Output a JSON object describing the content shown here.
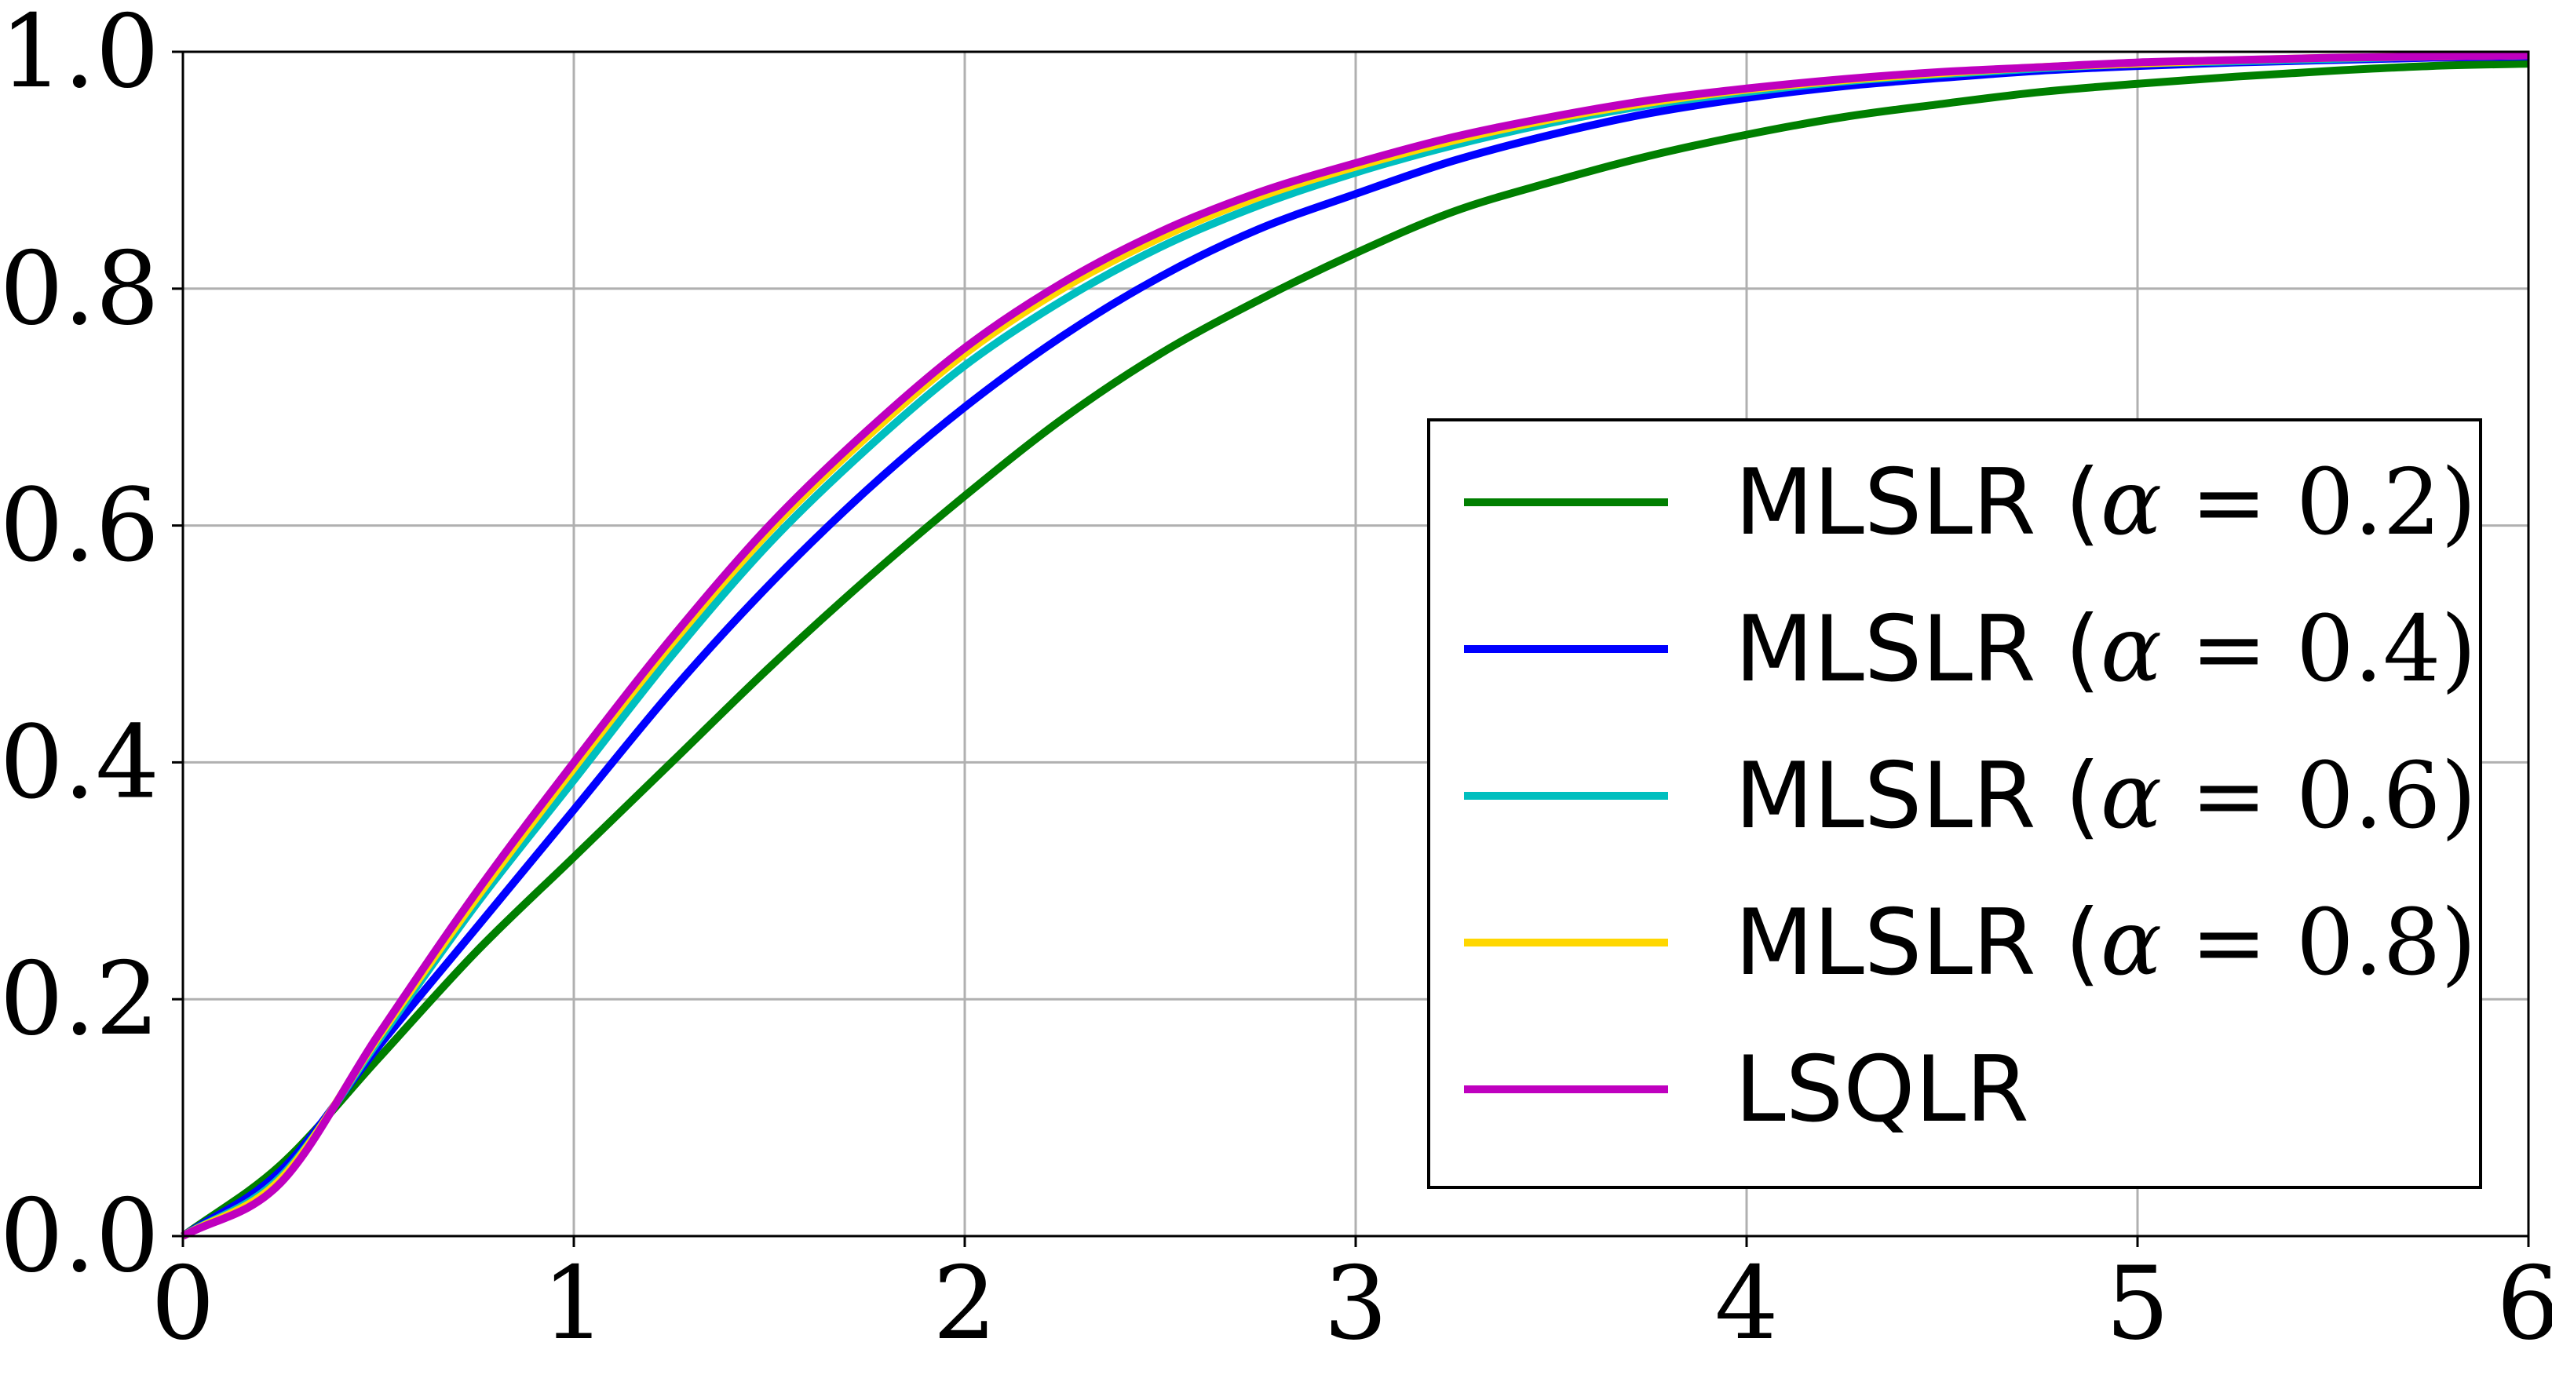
{
  "chart_data": {
    "type": "line",
    "title": "",
    "xlabel": "",
    "ylabel": "",
    "xlim": [
      0,
      6
    ],
    "ylim": [
      0,
      1.0
    ],
    "x_ticks": [
      "0",
      "1",
      "2",
      "3",
      "4",
      "5",
      "6"
    ],
    "y_ticks": [
      "0.0",
      "0.2",
      "0.4",
      "0.6",
      "0.8",
      "1.0"
    ],
    "grid": true,
    "legend_position": "right",
    "x": [
      0,
      0.25,
      0.5,
      0.75,
      1,
      1.25,
      1.5,
      1.75,
      2,
      2.25,
      2.5,
      2.75,
      3,
      3.25,
      3.5,
      3.75,
      4,
      4.25,
      4.5,
      4.75,
      5,
      5.25,
      5.5,
      5.75,
      6
    ],
    "series": [
      {
        "name": "MLSLR (α = 0.2)",
        "label_prefix": "MLSLR (",
        "label_symbol": "α",
        "label_value": " = 0.2)",
        "color": "#007f00",
        "values": [
          0,
          0.06,
          0.15,
          0.24,
          0.32,
          0.4,
          0.48,
          0.555,
          0.625,
          0.69,
          0.745,
          0.79,
          0.83,
          0.865,
          0.89,
          0.912,
          0.93,
          0.945,
          0.956,
          0.966,
          0.973,
          0.979,
          0.984,
          0.988,
          0.99
        ]
      },
      {
        "name": "MLSLR (α = 0.4)",
        "label_prefix": "MLSLR (",
        "label_symbol": "α",
        "label_value": " = 0.4)",
        "color": "#0000ff",
        "values": [
          0,
          0.055,
          0.16,
          0.26,
          0.36,
          0.46,
          0.55,
          0.63,
          0.7,
          0.76,
          0.81,
          0.85,
          0.88,
          0.908,
          0.93,
          0.948,
          0.961,
          0.971,
          0.978,
          0.984,
          0.988,
          0.991,
          0.993,
          0.995,
          0.996
        ]
      },
      {
        "name": "MLSLR (α = 0.6)",
        "label_prefix": "MLSLR (",
        "label_symbol": "α",
        "label_value": " = 0.6)",
        "color": "#00bfbf",
        "values": [
          0,
          0.05,
          0.165,
          0.28,
          0.385,
          0.49,
          0.585,
          0.665,
          0.735,
          0.79,
          0.835,
          0.87,
          0.898,
          0.921,
          0.94,
          0.955,
          0.966,
          0.975,
          0.981,
          0.986,
          0.99,
          0.992,
          0.994,
          0.996,
          0.997
        ]
      },
      {
        "name": "MLSLR (α = 0.8)",
        "label_prefix": "MLSLR (",
        "label_symbol": "α",
        "label_value": " = 0.8)",
        "color": "#ffd700",
        "values": [
          0,
          0.048,
          0.168,
          0.285,
          0.395,
          0.5,
          0.595,
          0.675,
          0.745,
          0.8,
          0.843,
          0.877,
          0.903,
          0.925,
          0.943,
          0.957,
          0.968,
          0.976,
          0.982,
          0.987,
          0.99,
          0.993,
          0.995,
          0.996,
          0.997
        ]
      },
      {
        "name": "LSQLR",
        "label_prefix": "LSQLR",
        "label_symbol": "",
        "label_value": "",
        "color": "#bf00bf",
        "values": [
          0,
          0.045,
          0.17,
          0.29,
          0.4,
          0.505,
          0.6,
          0.68,
          0.75,
          0.805,
          0.848,
          0.881,
          0.906,
          0.928,
          0.945,
          0.959,
          0.969,
          0.977,
          0.983,
          0.987,
          0.991,
          0.993,
          0.995,
          0.996,
          0.997
        ]
      }
    ]
  }
}
